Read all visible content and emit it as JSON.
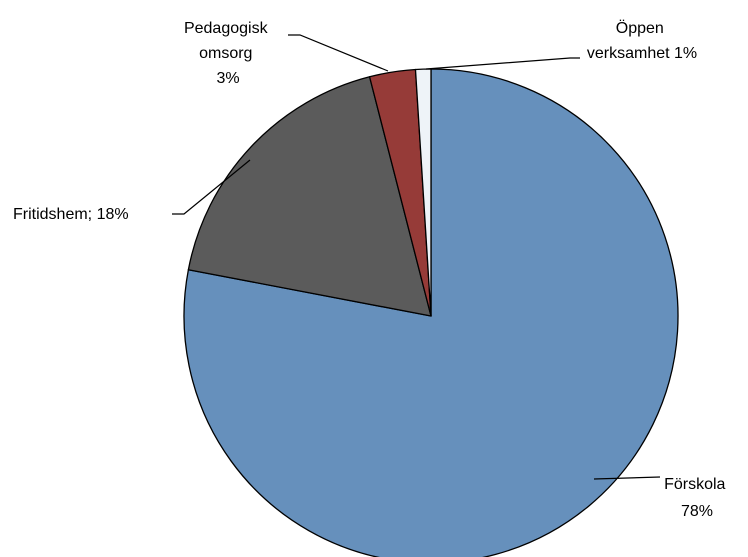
{
  "chart_data": {
    "type": "pie",
    "slices": [
      {
        "label_lines": [
          "Förskola",
          "78%"
        ],
        "value": 78,
        "color": "#6690BC"
      },
      {
        "label_lines": [
          "Fritidshem; 18%"
        ],
        "value": 18,
        "color": "#5B5B5B"
      },
      {
        "label_lines": [
          "Pedagogisk",
          "omsorg",
          "3%"
        ],
        "value": 3,
        "color": "#963B38"
      },
      {
        "label_lines": [
          "Öppen",
          "verksamhet 1%"
        ],
        "value": 1,
        "color": "#EEF3F8"
      }
    ],
    "start_angle_deg": 0,
    "direction": "clockwise",
    "legend": "none",
    "labels": "outside-with-leader-lines"
  }
}
